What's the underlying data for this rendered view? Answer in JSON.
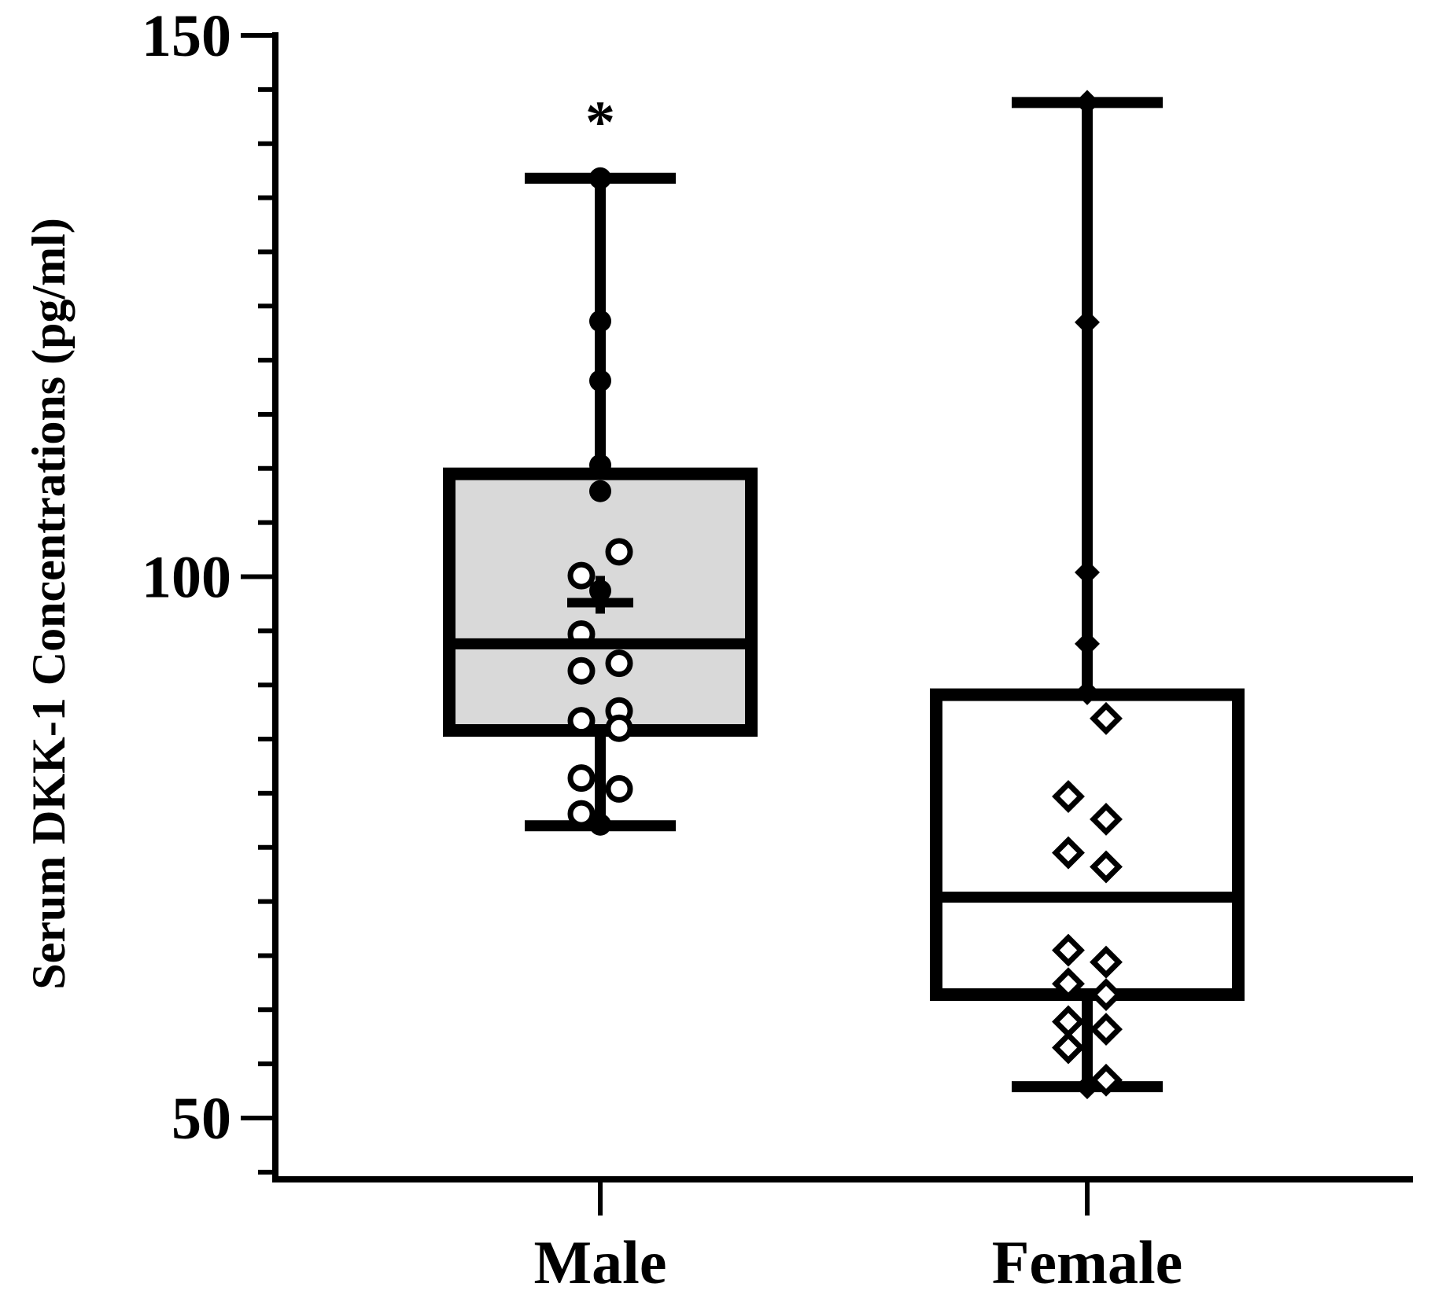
{
  "chart_data": {
    "type": "box",
    "title": "",
    "xlabel": "",
    "ylabel": "Serum DKK-1 Concentrations (pg/ml)",
    "ylim": [
      45,
      150
    ],
    "yticks": [
      {
        "value": 50,
        "label": "50"
      },
      {
        "value": 100,
        "label": "100"
      },
      {
        "value": 150,
        "label": "150"
      }
    ],
    "minor_ytick_step": 5,
    "grid": false,
    "legend": "none",
    "colors": {
      "male_box_fill": "#d9d9d9",
      "female_box_fill": "#ffffff",
      "stroke": "#000000"
    },
    "groups": [
      {
        "category": "Male",
        "box": {
          "min": 77,
          "q1": 85.8,
          "median": 93.8,
          "q3": 109.5,
          "max": 136.8,
          "mean": 97.6
        },
        "annotation": "*",
        "annotation_value": 142.2,
        "marker": "circle",
        "points": [
          {
            "y": 136.8,
            "filled": true
          },
          {
            "y": 123.6,
            "filled": true
          },
          {
            "y": 118.1,
            "filled": true
          },
          {
            "y": 110.3,
            "filled": true
          },
          {
            "y": 107.9,
            "filled": true
          },
          {
            "y": 102.3,
            "filled": false
          },
          {
            "y": 100.1,
            "filled": false
          },
          {
            "y": 98.7,
            "filled": true
          },
          {
            "y": 94.7,
            "filled": false
          },
          {
            "y": 92.0,
            "filled": false
          },
          {
            "y": 91.3,
            "filled": false
          },
          {
            "y": 87.6,
            "filled": false
          },
          {
            "y": 86.7,
            "filled": false
          },
          {
            "y": 86.0,
            "filled": false
          },
          {
            "y": 81.4,
            "filled": false
          },
          {
            "y": 80.4,
            "filled": false
          },
          {
            "y": 78.1,
            "filled": false
          },
          {
            "y": 77.1,
            "filled": true
          }
        ]
      },
      {
        "category": "Female",
        "box": {
          "min": 52.9,
          "q1": 61.4,
          "median": 70.4,
          "q3": 89.1,
          "max": 143.8
        },
        "marker": "diamond",
        "points": [
          {
            "y": 143.8,
            "filled": true
          },
          {
            "y": 123.5,
            "filled": true
          },
          {
            "y": 100.4,
            "filled": true
          },
          {
            "y": 93.8,
            "filled": true
          },
          {
            "y": 89.3,
            "filled": true
          },
          {
            "y": 86.9,
            "filled": false
          },
          {
            "y": 79.7,
            "filled": false
          },
          {
            "y": 77.6,
            "filled": false
          },
          {
            "y": 74.5,
            "filled": false
          },
          {
            "y": 73.2,
            "filled": false
          },
          {
            "y": 65.5,
            "filled": false
          },
          {
            "y": 64.4,
            "filled": false
          },
          {
            "y": 62.4,
            "filled": false
          },
          {
            "y": 61.4,
            "filled": false
          },
          {
            "y": 58.9,
            "filled": false
          },
          {
            "y": 58.2,
            "filled": false
          },
          {
            "y": 56.5,
            "filled": false
          },
          {
            "y": 53.5,
            "filled": false
          },
          {
            "y": 52.9,
            "filled": true
          }
        ]
      }
    ]
  }
}
